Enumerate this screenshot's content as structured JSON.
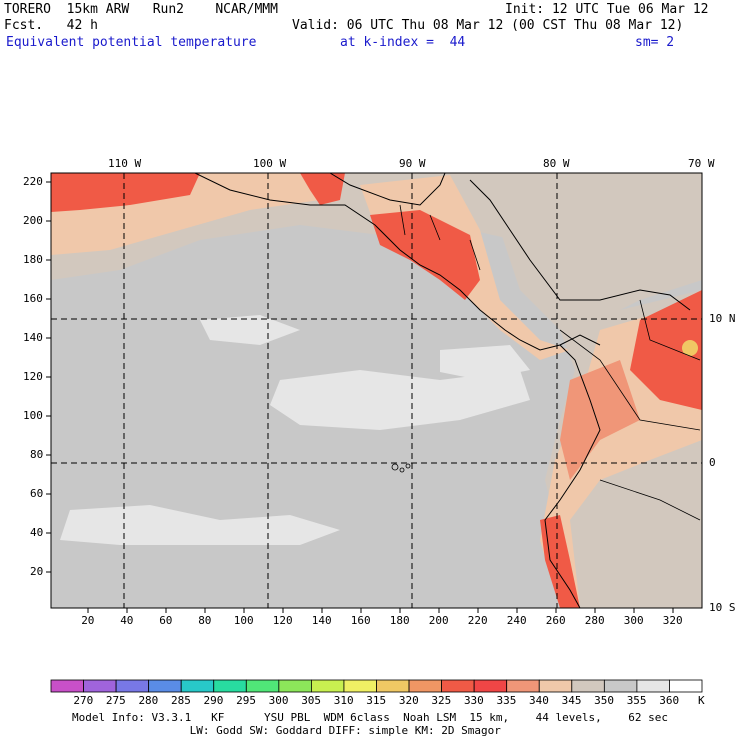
{
  "header": {
    "model": "TORERO  15km ARW   Run2    NCAR/MMM",
    "init": "Init: 12 UTC Tue 06 Mar 12",
    "fcst": "Fcst.   42 h",
    "valid": "Valid: 06 UTC Thu 08 Mar 12 (00 CST Thu 08 Mar 12)",
    "field": "Equivalent potential temperature",
    "level": "at k-index =  44",
    "smoothing": "sm= 2"
  },
  "map": {
    "lon_labels": [
      "110 W",
      "100 W",
      "90 W",
      "80 W",
      "70 W"
    ],
    "lat_labels": [
      "10 N",
      "0",
      "10 S"
    ],
    "y_ticks": [
      "20",
      "40",
      "60",
      "80",
      "100",
      "120",
      "140",
      "160",
      "180",
      "200",
      "220"
    ],
    "x_ticks": [
      "20",
      "40",
      "60",
      "80",
      "100",
      "120",
      "140",
      "160",
      "180",
      "200",
      "220",
      "240",
      "260",
      "280",
      "300",
      "320"
    ]
  },
  "colorbar": {
    "unit": "K",
    "levels": [
      "270",
      "275",
      "280",
      "285",
      "290",
      "295",
      "300",
      "305",
      "310",
      "315",
      "320",
      "325",
      "330",
      "335",
      "340",
      "345",
      "350",
      "355",
      "360"
    ],
    "colors": [
      "#c850c8",
      "#a064dc",
      "#7878e6",
      "#5a8ce6",
      "#28c8c8",
      "#28dca0",
      "#50e678",
      "#8ce65a",
      "#c8f050",
      "#f0f064",
      "#f0c864",
      "#f09664",
      "#f05a46",
      "#f04646",
      "#f09678",
      "#f0c8aa",
      "#d2c8be",
      "#c8c8c8",
      "#e6e6e6",
      "#ffffff"
    ]
  },
  "footer": {
    "line1": "Model Info: V3.3.1   KF      YSU PBL  WDM 6class  Noah LSM  15 km,    44 levels,    62 sec",
    "line2": "         LW: Godd SW: Goddard DIFF: simple KM: 2D Smagor"
  }
}
